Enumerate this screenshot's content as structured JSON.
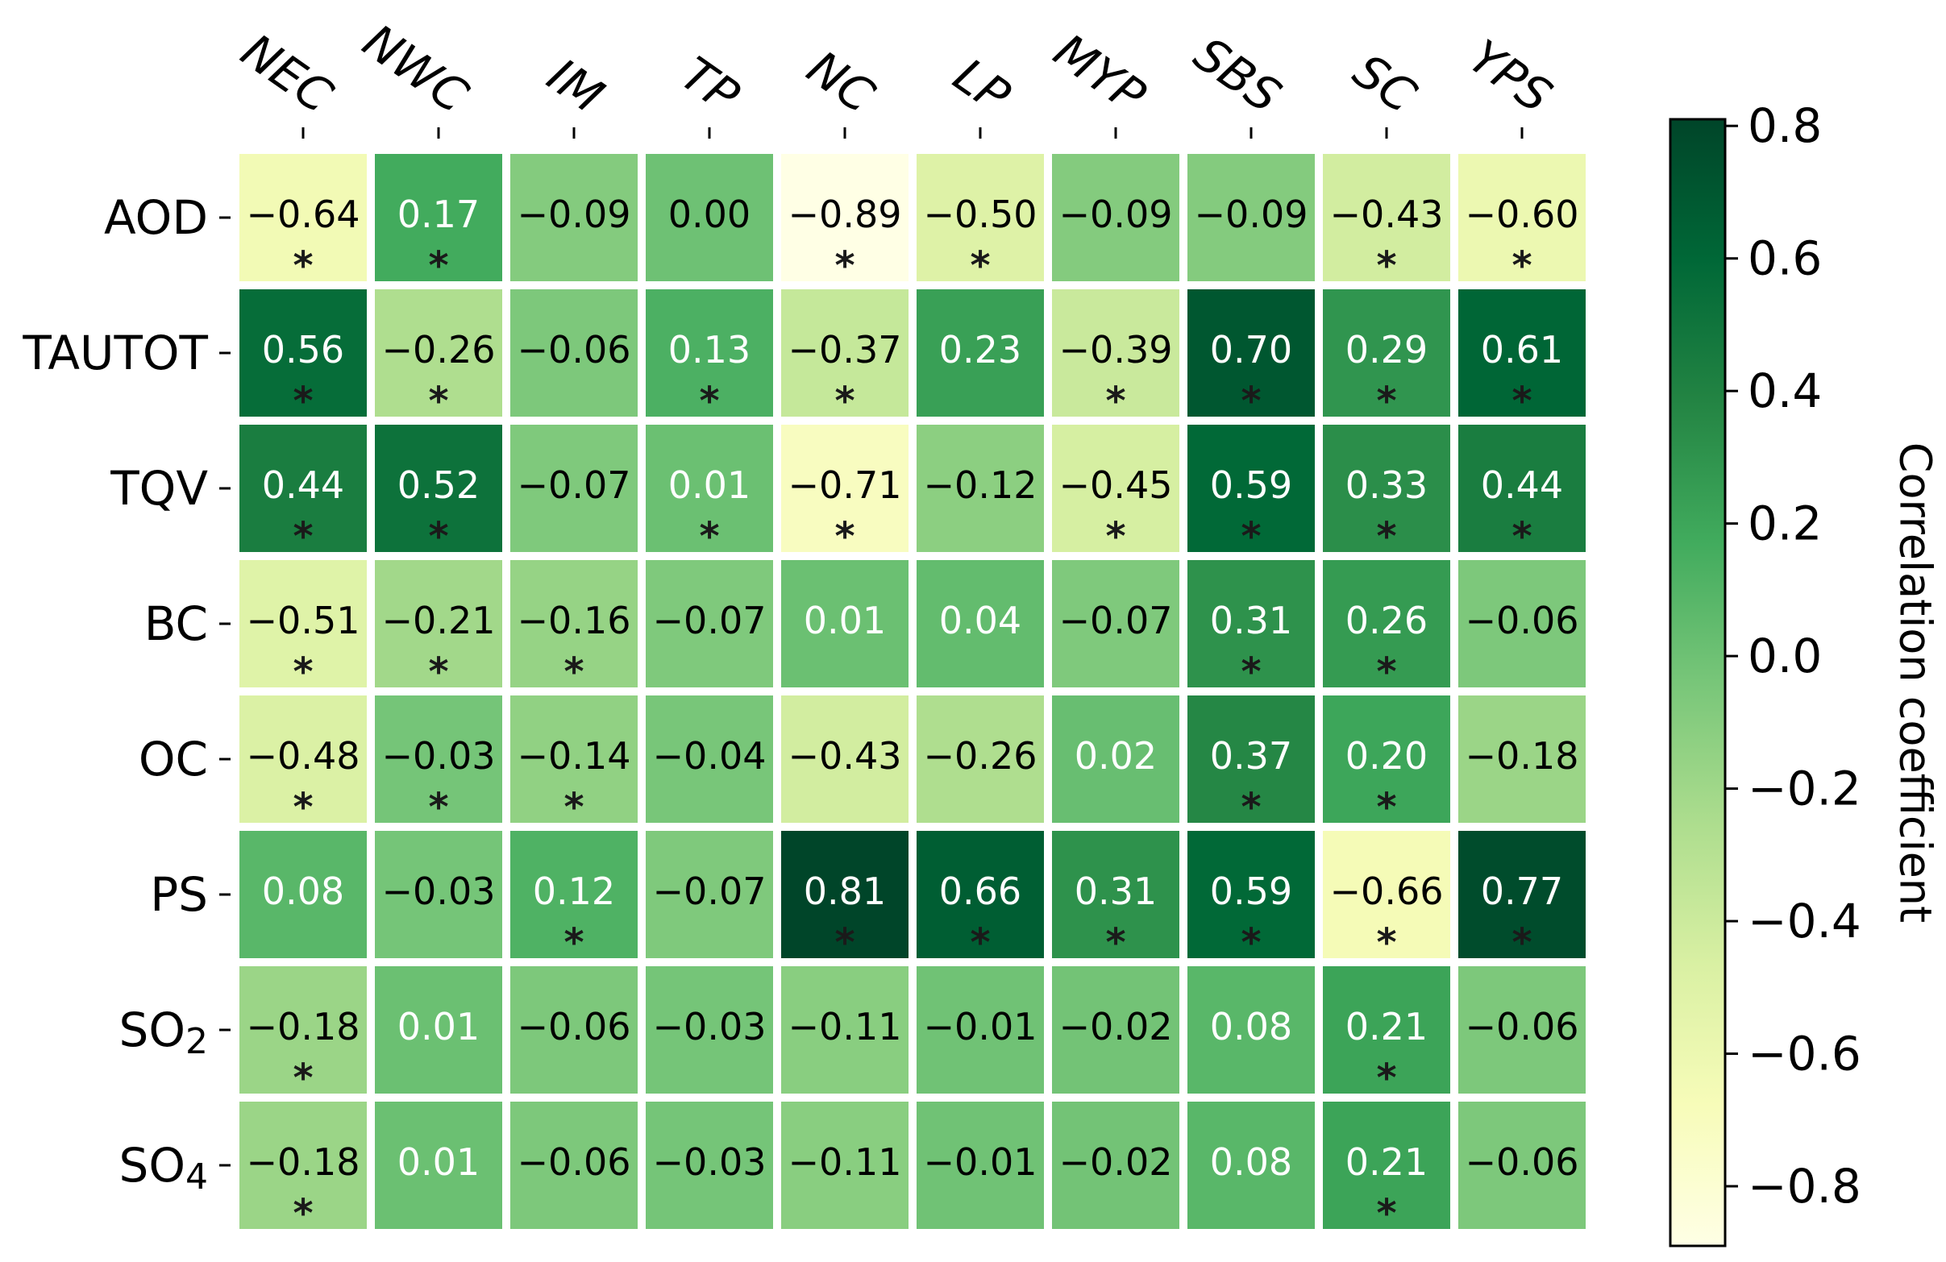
{
  "chart_data": {
    "type": "heatmap",
    "columns": [
      "NEC",
      "NWC",
      "IM",
      "TP",
      "NC",
      "LP",
      "MYP",
      "SBS",
      "SC",
      "YPS"
    ],
    "rows": [
      {
        "label": "AOD",
        "sub": ""
      },
      {
        "label": "TAUTOT",
        "sub": ""
      },
      {
        "label": "TQV",
        "sub": ""
      },
      {
        "label": "BC",
        "sub": ""
      },
      {
        "label": "OC",
        "sub": ""
      },
      {
        "label": "PS",
        "sub": ""
      },
      {
        "label": "SO",
        "sub": "2"
      },
      {
        "label": "SO",
        "sub": "4"
      }
    ],
    "values": [
      [
        -0.64,
        0.17,
        -0.09,
        0.0,
        -0.89,
        -0.5,
        -0.09,
        -0.09,
        -0.43,
        -0.6
      ],
      [
        0.56,
        -0.26,
        -0.06,
        0.13,
        -0.37,
        0.23,
        -0.39,
        0.7,
        0.29,
        0.61
      ],
      [
        0.44,
        0.52,
        -0.07,
        0.01,
        -0.71,
        -0.12,
        -0.45,
        0.59,
        0.33,
        0.44
      ],
      [
        -0.51,
        -0.21,
        -0.16,
        -0.07,
        0.01,
        0.04,
        -0.07,
        0.31,
        0.26,
        -0.06
      ],
      [
        -0.48,
        -0.03,
        -0.14,
        -0.04,
        -0.43,
        -0.26,
        0.02,
        0.37,
        0.2,
        -0.18
      ],
      [
        0.08,
        -0.03,
        0.12,
        -0.07,
        0.81,
        0.66,
        0.31,
        0.59,
        -0.66,
        0.77
      ],
      [
        -0.18,
        0.01,
        -0.06,
        -0.03,
        -0.11,
        -0.01,
        -0.02,
        0.08,
        0.21,
        -0.06
      ],
      [
        -0.18,
        0.01,
        -0.06,
        -0.03,
        -0.11,
        -0.01,
        -0.02,
        0.08,
        0.21,
        -0.06
      ]
    ],
    "labels": [
      [
        "−0.64",
        "0.17",
        "−0.09",
        "0.00",
        "−0.89",
        "−0.50",
        "−0.09",
        "−0.09",
        "−0.43",
        "−0.60"
      ],
      [
        "0.56",
        "−0.26",
        "−0.06",
        "0.13",
        "−0.37",
        "0.23",
        "−0.39",
        "0.70",
        "0.29",
        "0.61"
      ],
      [
        "0.44",
        "0.52",
        "−0.07",
        "0.01",
        "−0.71",
        "−0.12",
        "−0.45",
        "0.59",
        "0.33",
        "0.44"
      ],
      [
        "−0.51",
        "−0.21",
        "−0.16",
        "−0.07",
        "0.01",
        "0.04",
        "−0.07",
        "0.31",
        "0.26",
        "−0.06"
      ],
      [
        "−0.48",
        "−0.03",
        "−0.14",
        "−0.04",
        "−0.43",
        "−0.26",
        "0.02",
        "0.37",
        "0.20",
        "−0.18"
      ],
      [
        "0.08",
        "−0.03",
        "0.12",
        "−0.07",
        "0.81",
        "0.66",
        "0.31",
        "0.59",
        "−0.66",
        "0.77"
      ],
      [
        "−0.18",
        "0.01",
        "−0.06",
        "−0.03",
        "−0.11",
        "−0.01",
        "−0.02",
        "0.08",
        "0.21",
        "−0.06"
      ],
      [
        "−0.18",
        "0.01",
        "−0.06",
        "−0.03",
        "−0.11",
        "−0.01",
        "−0.02",
        "0.08",
        "0.21",
        "−0.06"
      ]
    ],
    "significant": [
      [
        1,
        1,
        0,
        0,
        1,
        1,
        0,
        0,
        1,
        1
      ],
      [
        1,
        1,
        0,
        1,
        1,
        0,
        1,
        1,
        1,
        1
      ],
      [
        1,
        1,
        0,
        1,
        1,
        0,
        1,
        1,
        1,
        1
      ],
      [
        1,
        1,
        1,
        0,
        0,
        0,
        0,
        1,
        1,
        0
      ],
      [
        1,
        1,
        1,
        0,
        0,
        0,
        0,
        1,
        1,
        0
      ],
      [
        0,
        0,
        1,
        0,
        1,
        1,
        1,
        1,
        1,
        1
      ],
      [
        1,
        0,
        0,
        0,
        0,
        0,
        0,
        0,
        1,
        0
      ],
      [
        1,
        0,
        0,
        0,
        0,
        0,
        0,
        0,
        1,
        0
      ]
    ],
    "significance_marker": "*",
    "colorbar": {
      "label": "Correlation coefficient",
      "min": -0.89,
      "max": 0.81,
      "ticks": [
        0.8,
        0.6,
        0.4,
        0.2,
        0.0,
        -0.2,
        -0.4,
        -0.6,
        -0.8
      ],
      "tick_labels": [
        "0.8",
        "0.6",
        "0.4",
        "0.2",
        "0.0",
        "−0.2",
        "−0.4",
        "−0.6",
        "−0.8"
      ],
      "colormap": [
        "#ffffe5",
        "#f7fcb9",
        "#d9f0a3",
        "#addd8e",
        "#78c679",
        "#41ab5d",
        "#238443",
        "#006837",
        "#004529"
      ]
    },
    "legend_placement": "right"
  }
}
